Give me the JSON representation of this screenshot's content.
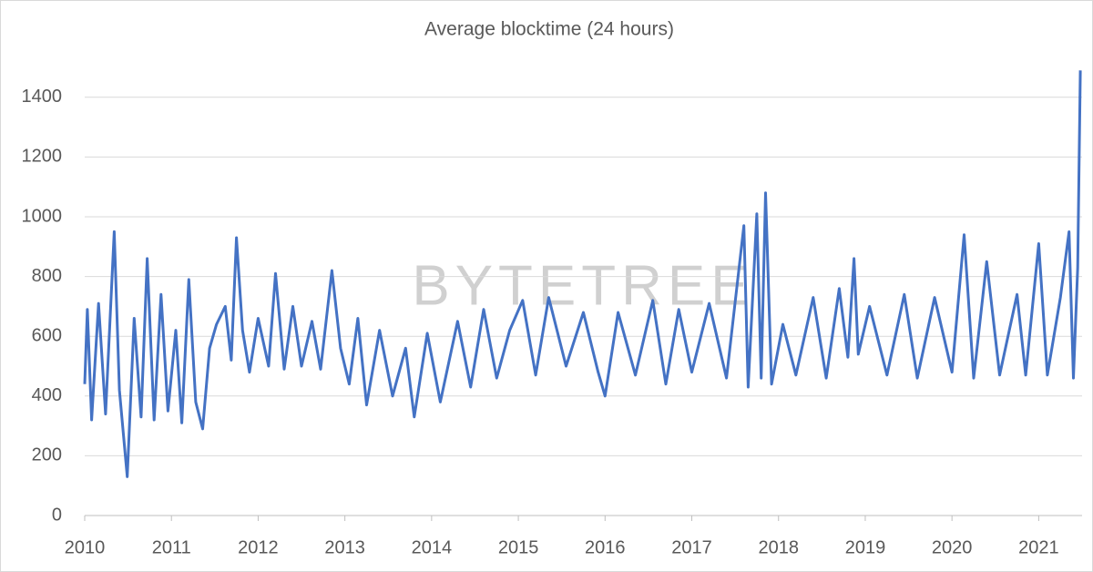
{
  "chart_data": {
    "type": "line",
    "title": "Average blocktime (24 hours)",
    "watermark": "BYTETREE",
    "x": [
      2010.0,
      2010.03,
      2010.08,
      2010.16,
      2010.24,
      2010.34,
      2010.4,
      2010.49,
      2010.57,
      2010.65,
      2010.72,
      2010.8,
      2010.88,
      2010.96,
      2011.05,
      2011.12,
      2011.2,
      2011.28,
      2011.36,
      2011.44,
      2011.52,
      2011.62,
      2011.69,
      2011.75,
      2011.82,
      2011.9,
      2012.0,
      2012.12,
      2012.2,
      2012.3,
      2012.4,
      2012.5,
      2012.62,
      2012.72,
      2012.85,
      2012.95,
      2013.05,
      2013.15,
      2013.25,
      2013.4,
      2013.55,
      2013.7,
      2013.8,
      2013.95,
      2014.1,
      2014.3,
      2014.45,
      2014.6,
      2014.75,
      2014.9,
      2015.05,
      2015.2,
      2015.35,
      2015.55,
      2015.75,
      2015.92,
      2016.0,
      2016.15,
      2016.35,
      2016.55,
      2016.7,
      2016.85,
      2017.0,
      2017.2,
      2017.4,
      2017.6,
      2017.65,
      2017.75,
      2017.8,
      2017.85,
      2017.92,
      2018.05,
      2018.2,
      2018.4,
      2018.55,
      2018.7,
      2018.8,
      2018.87,
      2018.92,
      2019.05,
      2019.25,
      2019.45,
      2019.6,
      2019.8,
      2020.0,
      2020.14,
      2020.25,
      2020.4,
      2020.55,
      2020.75,
      2020.85,
      2021.0,
      2021.1,
      2021.25,
      2021.35,
      2021.4,
      2021.45,
      2021.48
    ],
    "series": [
      {
        "name": "Average blocktime",
        "color": "#4472c4",
        "values": [
          440,
          690,
          320,
          710,
          340,
          950,
          420,
          130,
          660,
          330,
          860,
          320,
          740,
          350,
          620,
          310,
          790,
          380,
          290,
          560,
          640,
          700,
          520,
          930,
          620,
          480,
          660,
          500,
          810,
          490,
          700,
          500,
          650,
          490,
          820,
          560,
          440,
          660,
          370,
          620,
          400,
          560,
          330,
          610,
          380,
          650,
          430,
          690,
          460,
          620,
          720,
          470,
          730,
          500,
          680,
          480,
          400,
          680,
          470,
          720,
          440,
          690,
          480,
          710,
          460,
          970,
          430,
          1010,
          460,
          1080,
          440,
          640,
          470,
          730,
          460,
          760,
          530,
          860,
          540,
          700,
          470,
          740,
          460,
          730,
          480,
          940,
          460,
          850,
          470,
          740,
          470,
          910,
          470,
          730,
          950,
          460,
          830,
          1490
        ]
      }
    ],
    "xlim": [
      2010,
      2021.5
    ],
    "xticks": [
      2010,
      2011,
      2012,
      2013,
      2014,
      2015,
      2016,
      2017,
      2018,
      2019,
      2020,
      2021
    ],
    "ylim": [
      0,
      1500
    ],
    "yticks": [
      0,
      200,
      400,
      600,
      800,
      1000,
      1200,
      1400
    ],
    "grid": true
  }
}
